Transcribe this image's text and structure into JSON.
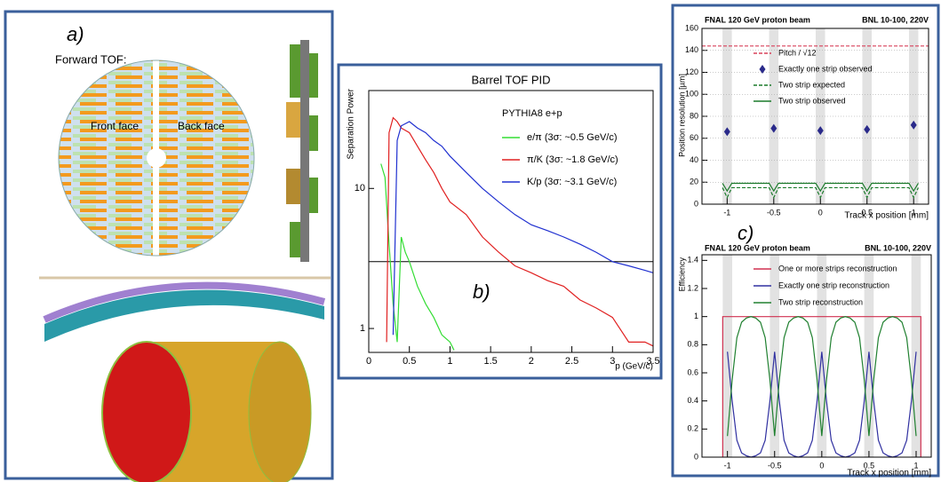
{
  "figure": {
    "panel_a": {
      "label": "a)",
      "title": "Forward TOF:",
      "front": "Front face",
      "back": "Back face"
    }
  },
  "chart_data": [
    {
      "type": "line",
      "title": "Barrel TOF PID",
      "y_label": "Separation Power",
      "x_label": "p (GeV/c)",
      "annotation": "PYTHIA8 e+p",
      "panel_label": "b)",
      "log_y": true,
      "xlim": [
        0,
        3.5
      ],
      "ylim": [
        0.675,
        50
      ],
      "xticks": [
        0,
        0.5,
        1,
        1.5,
        2,
        2.5,
        3,
        3.5
      ],
      "yticks": [
        1,
        10
      ],
      "hline": 3,
      "series": [
        {
          "name": "e/π (3σ: ~0.5 GeV/c)",
          "color": "#33dd33",
          "x": [
            0.15,
            0.2,
            0.25,
            0.3,
            0.35,
            0.4,
            0.45,
            0.5,
            0.6,
            0.7,
            0.8,
            0.9,
            1.0,
            1.05
          ],
          "values": [
            15,
            12,
            4,
            1.5,
            0.8,
            4.5,
            3.5,
            3,
            2,
            1.5,
            1.2,
            0.9,
            0.8,
            0.7
          ]
        },
        {
          "name": "π/K (3σ: ~1.8 GeV/c)",
          "color": "#e02020",
          "x": [
            0.22,
            0.25,
            0.3,
            0.35,
            0.4,
            0.5,
            0.6,
            0.7,
            0.8,
            0.9,
            1.0,
            1.2,
            1.4,
            1.6,
            1.8,
            2.0,
            2.2,
            2.4,
            2.6,
            2.8,
            3.0,
            3.2,
            3.4,
            3.5
          ],
          "values": [
            0.8,
            25,
            32,
            30,
            27,
            25,
            20,
            16,
            13,
            10,
            8,
            6.5,
            4.5,
            3.5,
            2.8,
            2.5,
            2.2,
            2,
            1.6,
            1.4,
            1.2,
            0.8,
            0.8,
            0.75
          ]
        },
        {
          "name": "K/p (3σ: ~3.1 GeV/c)",
          "color": "#2030d0",
          "x": [
            0.3,
            0.35,
            0.4,
            0.5,
            0.6,
            0.7,
            0.8,
            0.9,
            1.0,
            1.2,
            1.4,
            1.6,
            1.8,
            2.0,
            2.2,
            2.4,
            2.6,
            2.8,
            3.0,
            3.2,
            3.4,
            3.5
          ],
          "values": [
            0.9,
            22,
            28,
            30,
            27,
            25,
            22,
            20,
            17,
            13,
            10,
            8,
            6.5,
            5.5,
            5,
            4.5,
            4,
            3.5,
            3,
            2.8,
            2.6,
            2.5
          ]
        }
      ]
    },
    {
      "type": "line",
      "title_left": "FNAL 120 GeV proton beam",
      "title_right": "BNL 10-100, 220V",
      "y_label": "Position resolution [µm]",
      "x_label": "Track x position [mm]",
      "panel_label": "c)",
      "xlim": [
        -1.27,
        1.16
      ],
      "ylim": [
        0,
        160
      ],
      "xticks": [
        -1,
        -0.5,
        0,
        0.5,
        1
      ],
      "yticks": [
        0,
        20,
        40,
        60,
        80,
        100,
        120,
        140,
        160
      ],
      "grid": true,
      "shaded": [
        -1,
        -0.5,
        0,
        0.5,
        1
      ],
      "shaded_width": 0.1,
      "series": [
        {
          "name": "Pitch / √12",
          "color": "#d8405a",
          "dashed": true,
          "x": [
            -1.27,
            1.16
          ],
          "values": [
            144,
            144
          ]
        },
        {
          "name": "Exactly one strip observed",
          "color": "#2a2a8a",
          "marker": "diamond",
          "x": [
            -1,
            -0.5,
            0,
            0.5,
            1
          ],
          "values": [
            66,
            69,
            67,
            68,
            72
          ]
        },
        {
          "name": "Two strip expected",
          "color": "#1a7a2a",
          "dashed": true,
          "x": [
            -1.05,
            -1,
            -0.95,
            -0.55,
            -0.5,
            -0.45,
            -0.05,
            0,
            0.05,
            0.45,
            0.5,
            0.55,
            0.95,
            1,
            1.05
          ],
          "values": [
            15,
            6,
            15,
            15,
            6,
            15,
            15,
            6,
            15,
            15,
            6,
            15,
            15,
            6,
            15
          ]
        },
        {
          "name": "Two strip observed",
          "color": "#1a7a2a",
          "x": [
            -1.05,
            -1,
            -0.95,
            -0.55,
            -0.5,
            -0.45,
            -0.05,
            0,
            0.05,
            0.45,
            0.5,
            0.55,
            0.95,
            1,
            1.05
          ],
          "values": [
            19,
            12,
            19,
            19,
            12,
            19,
            19,
            12,
            19,
            19,
            12,
            19,
            19,
            12,
            19
          ]
        }
      ]
    },
    {
      "type": "line",
      "title_left": "FNAL 120 GeV proton beam",
      "title_right": "BNL 10-100, 220V",
      "y_label": "Efficiency",
      "x_label": "Track x position [mm]",
      "xlim": [
        -1.27,
        1.16
      ],
      "ylim": [
        0,
        1.44
      ],
      "xticks": [
        -1,
        -0.5,
        0,
        0.5,
        1
      ],
      "yticks": [
        0,
        0.2,
        0.4,
        0.6,
        0.8,
        1,
        1.2,
        1.4
      ],
      "shaded": [
        -1,
        -0.5,
        0,
        0.5,
        1
      ],
      "shaded_width": 0.1,
      "series": [
        {
          "name": "One or more strips reconstruction",
          "color": "#d03050",
          "x": [
            -1.05,
            -1.05,
            1.05,
            1.05
          ],
          "values": [
            0,
            1,
            1,
            0
          ]
        },
        {
          "name": "Exactly one strip reconstruction",
          "color": "#3030a0",
          "x": [
            -1,
            -0.95,
            -0.9,
            -0.85,
            -0.8,
            -0.75,
            -0.7,
            -0.65,
            -0.6,
            -0.55,
            -0.5,
            -0.45,
            -0.4,
            -0.35,
            -0.3,
            -0.25,
            -0.2,
            -0.15,
            -0.1,
            -0.05,
            0,
            0.05,
            0.1,
            0.15,
            0.2,
            0.25,
            0.3,
            0.35,
            0.4,
            0.45,
            0.5,
            0.55,
            0.6,
            0.65,
            0.7,
            0.75,
            0.8,
            0.85,
            0.9,
            0.95,
            1
          ],
          "values": [
            0.75,
            0.4,
            0.12,
            0.03,
            0.01,
            0,
            0.01,
            0.03,
            0.12,
            0.4,
            0.75,
            0.4,
            0.12,
            0.03,
            0.01,
            0,
            0.01,
            0.03,
            0.12,
            0.4,
            0.75,
            0.4,
            0.12,
            0.03,
            0.01,
            0,
            0.01,
            0.03,
            0.12,
            0.4,
            0.75,
            0.4,
            0.12,
            0.03,
            0.01,
            0,
            0.01,
            0.03,
            0.12,
            0.4,
            0.75
          ]
        },
        {
          "name": "Two strip reconstruction",
          "color": "#208030",
          "x": [
            -1,
            -0.95,
            -0.9,
            -0.85,
            -0.8,
            -0.75,
            -0.7,
            -0.65,
            -0.6,
            -0.55,
            -0.5,
            -0.45,
            -0.4,
            -0.35,
            -0.3,
            -0.25,
            -0.2,
            -0.15,
            -0.1,
            -0.05,
            0,
            0.05,
            0.1,
            0.15,
            0.2,
            0.25,
            0.3,
            0.35,
            0.4,
            0.45,
            0.5,
            0.55,
            0.6,
            0.65,
            0.7,
            0.75,
            0.8,
            0.85,
            0.9,
            0.95,
            1
          ],
          "values": [
            0.15,
            0.55,
            0.85,
            0.96,
            0.99,
            1.0,
            0.99,
            0.96,
            0.85,
            0.55,
            0.15,
            0.55,
            0.85,
            0.96,
            0.99,
            1.0,
            0.99,
            0.96,
            0.85,
            0.55,
            0.15,
            0.55,
            0.85,
            0.96,
            0.99,
            1.0,
            0.99,
            0.96,
            0.85,
            0.55,
            0.15,
            0.55,
            0.85,
            0.96,
            0.99,
            1.0,
            0.99,
            0.96,
            0.85,
            0.55,
            0.15
          ]
        }
      ]
    }
  ]
}
